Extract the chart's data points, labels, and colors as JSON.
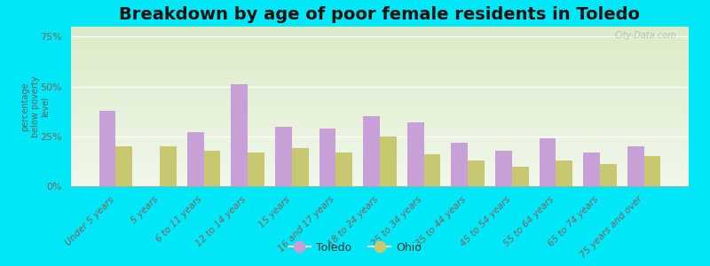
{
  "title": "Breakdown by age of poor female residents in Toledo",
  "ylabel": "percentage\nbelow poverty\nlevel",
  "categories": [
    "Under 5 years",
    "5 years",
    "6 to 11 years",
    "12 to 14 years",
    "15 years",
    "16 and 17 years",
    "18 to 24 years",
    "25 to 34 years",
    "35 to 44 years",
    "45 to 54 years",
    "55 to 64 years",
    "65 to 74 years",
    "75 years and over"
  ],
  "toledo_values": [
    38,
    0,
    27,
    51,
    30,
    29,
    35,
    32,
    22,
    18,
    24,
    17,
    20
  ],
  "ohio_values": [
    20,
    20,
    18,
    17,
    19,
    17,
    25,
    16,
    13,
    10,
    13,
    11,
    15
  ],
  "toledo_color": "#c8a0d8",
  "ohio_color": "#c8c870",
  "outer_bg_color": "#00e8f8",
  "yticks": [
    0,
    25,
    50,
    75
  ],
  "ytick_labels": [
    "0%",
    "25%",
    "50%",
    "75%"
  ],
  "ylim": [
    0,
    80
  ],
  "title_fontsize": 14,
  "label_fontsize": 7.5,
  "bar_width": 0.38,
  "watermark": "City-Data.com",
  "tick_color": "#806060",
  "ylabel_color": "#606060"
}
